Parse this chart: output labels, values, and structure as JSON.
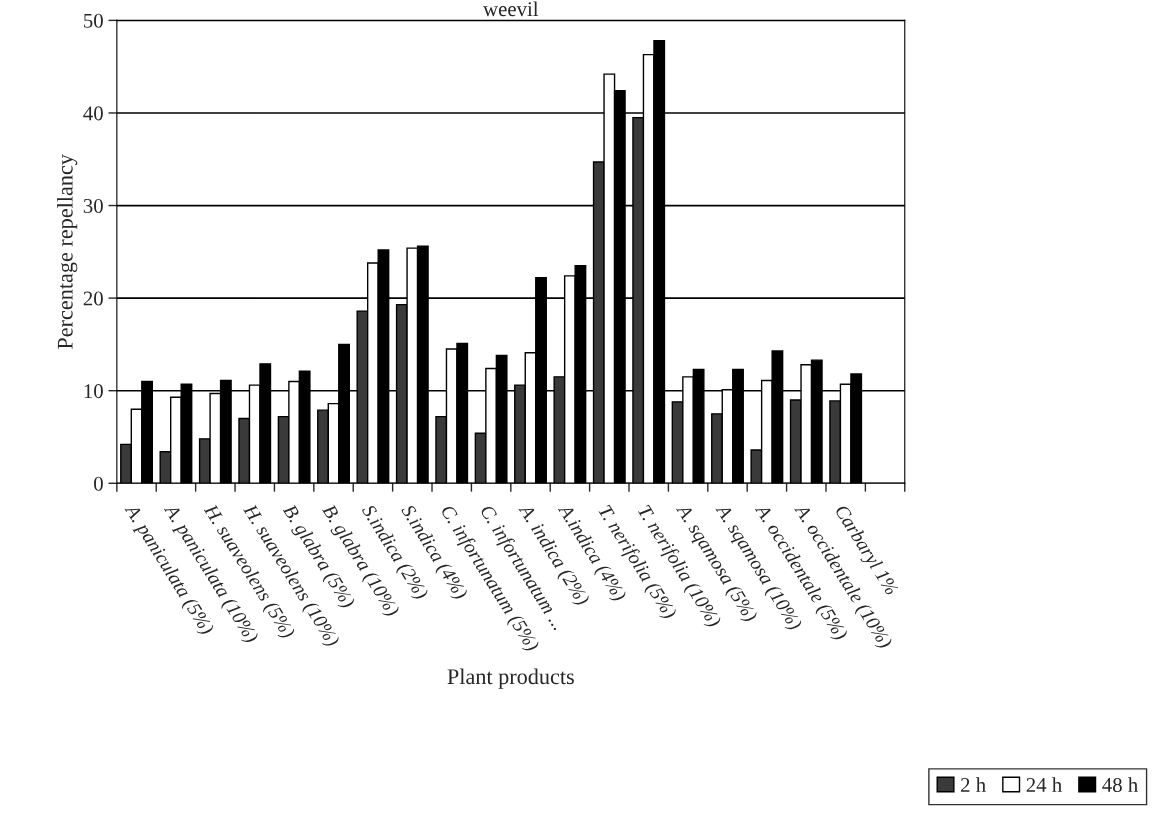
{
  "chart_data": {
    "type": "bar",
    "title": "weevil",
    "xlabel": "Plant products",
    "ylabel": "Percentage repellancy",
    "categories": [
      "A. paniculata (5%)",
      "A. paniculata (10%)",
      "H. suaveolens (5%)",
      "H. suaveolens (10%)",
      "B. glabra (5%)",
      "B. glabra (10%)",
      "S.indica (2%)",
      "S.indica (4%)",
      "C. infortunatum (5%)",
      "C. infortunatum ...",
      "A. indica (2%)",
      "A.indica (4%)",
      "T. nerifolia (5%)",
      "T. nerifolia (10%)",
      "A. sqamosa (5%)",
      "A. sqamosa (10%)",
      "A. occidentale (5%)",
      "A. occidentale (10%)",
      "Carbaryl 1%"
    ],
    "series": [
      {
        "name": "2 h",
        "color": "#3a3a3a",
        "values": [
          4.2,
          3.4,
          4.8,
          7.0,
          7.2,
          7.9,
          18.6,
          19.3,
          7.2,
          5.4,
          10.6,
          11.5,
          34.7,
          39.5,
          8.8,
          7.5,
          3.6,
          9.0,
          8.9
        ]
      },
      {
        "name": "24 h",
        "color": "#ffffff",
        "values": [
          8.0,
          9.3,
          9.7,
          10.6,
          11.0,
          8.6,
          23.8,
          25.4,
          14.5,
          12.4,
          14.1,
          22.4,
          44.2,
          46.3,
          11.5,
          10.1,
          11.1,
          12.8,
          10.7
        ]
      },
      {
        "name": "48 h",
        "color": "#000000",
        "values": [
          11.0,
          10.7,
          11.1,
          12.9,
          12.1,
          15.0,
          25.2,
          25.6,
          15.1,
          13.8,
          22.2,
          23.5,
          42.4,
          47.8,
          12.3,
          12.3,
          14.3,
          13.3,
          11.8
        ]
      }
    ],
    "ylim": [
      0,
      50
    ],
    "yticks": [
      0,
      10,
      20,
      30,
      40,
      50
    ],
    "grid": "y",
    "legend": "bottom right"
  }
}
